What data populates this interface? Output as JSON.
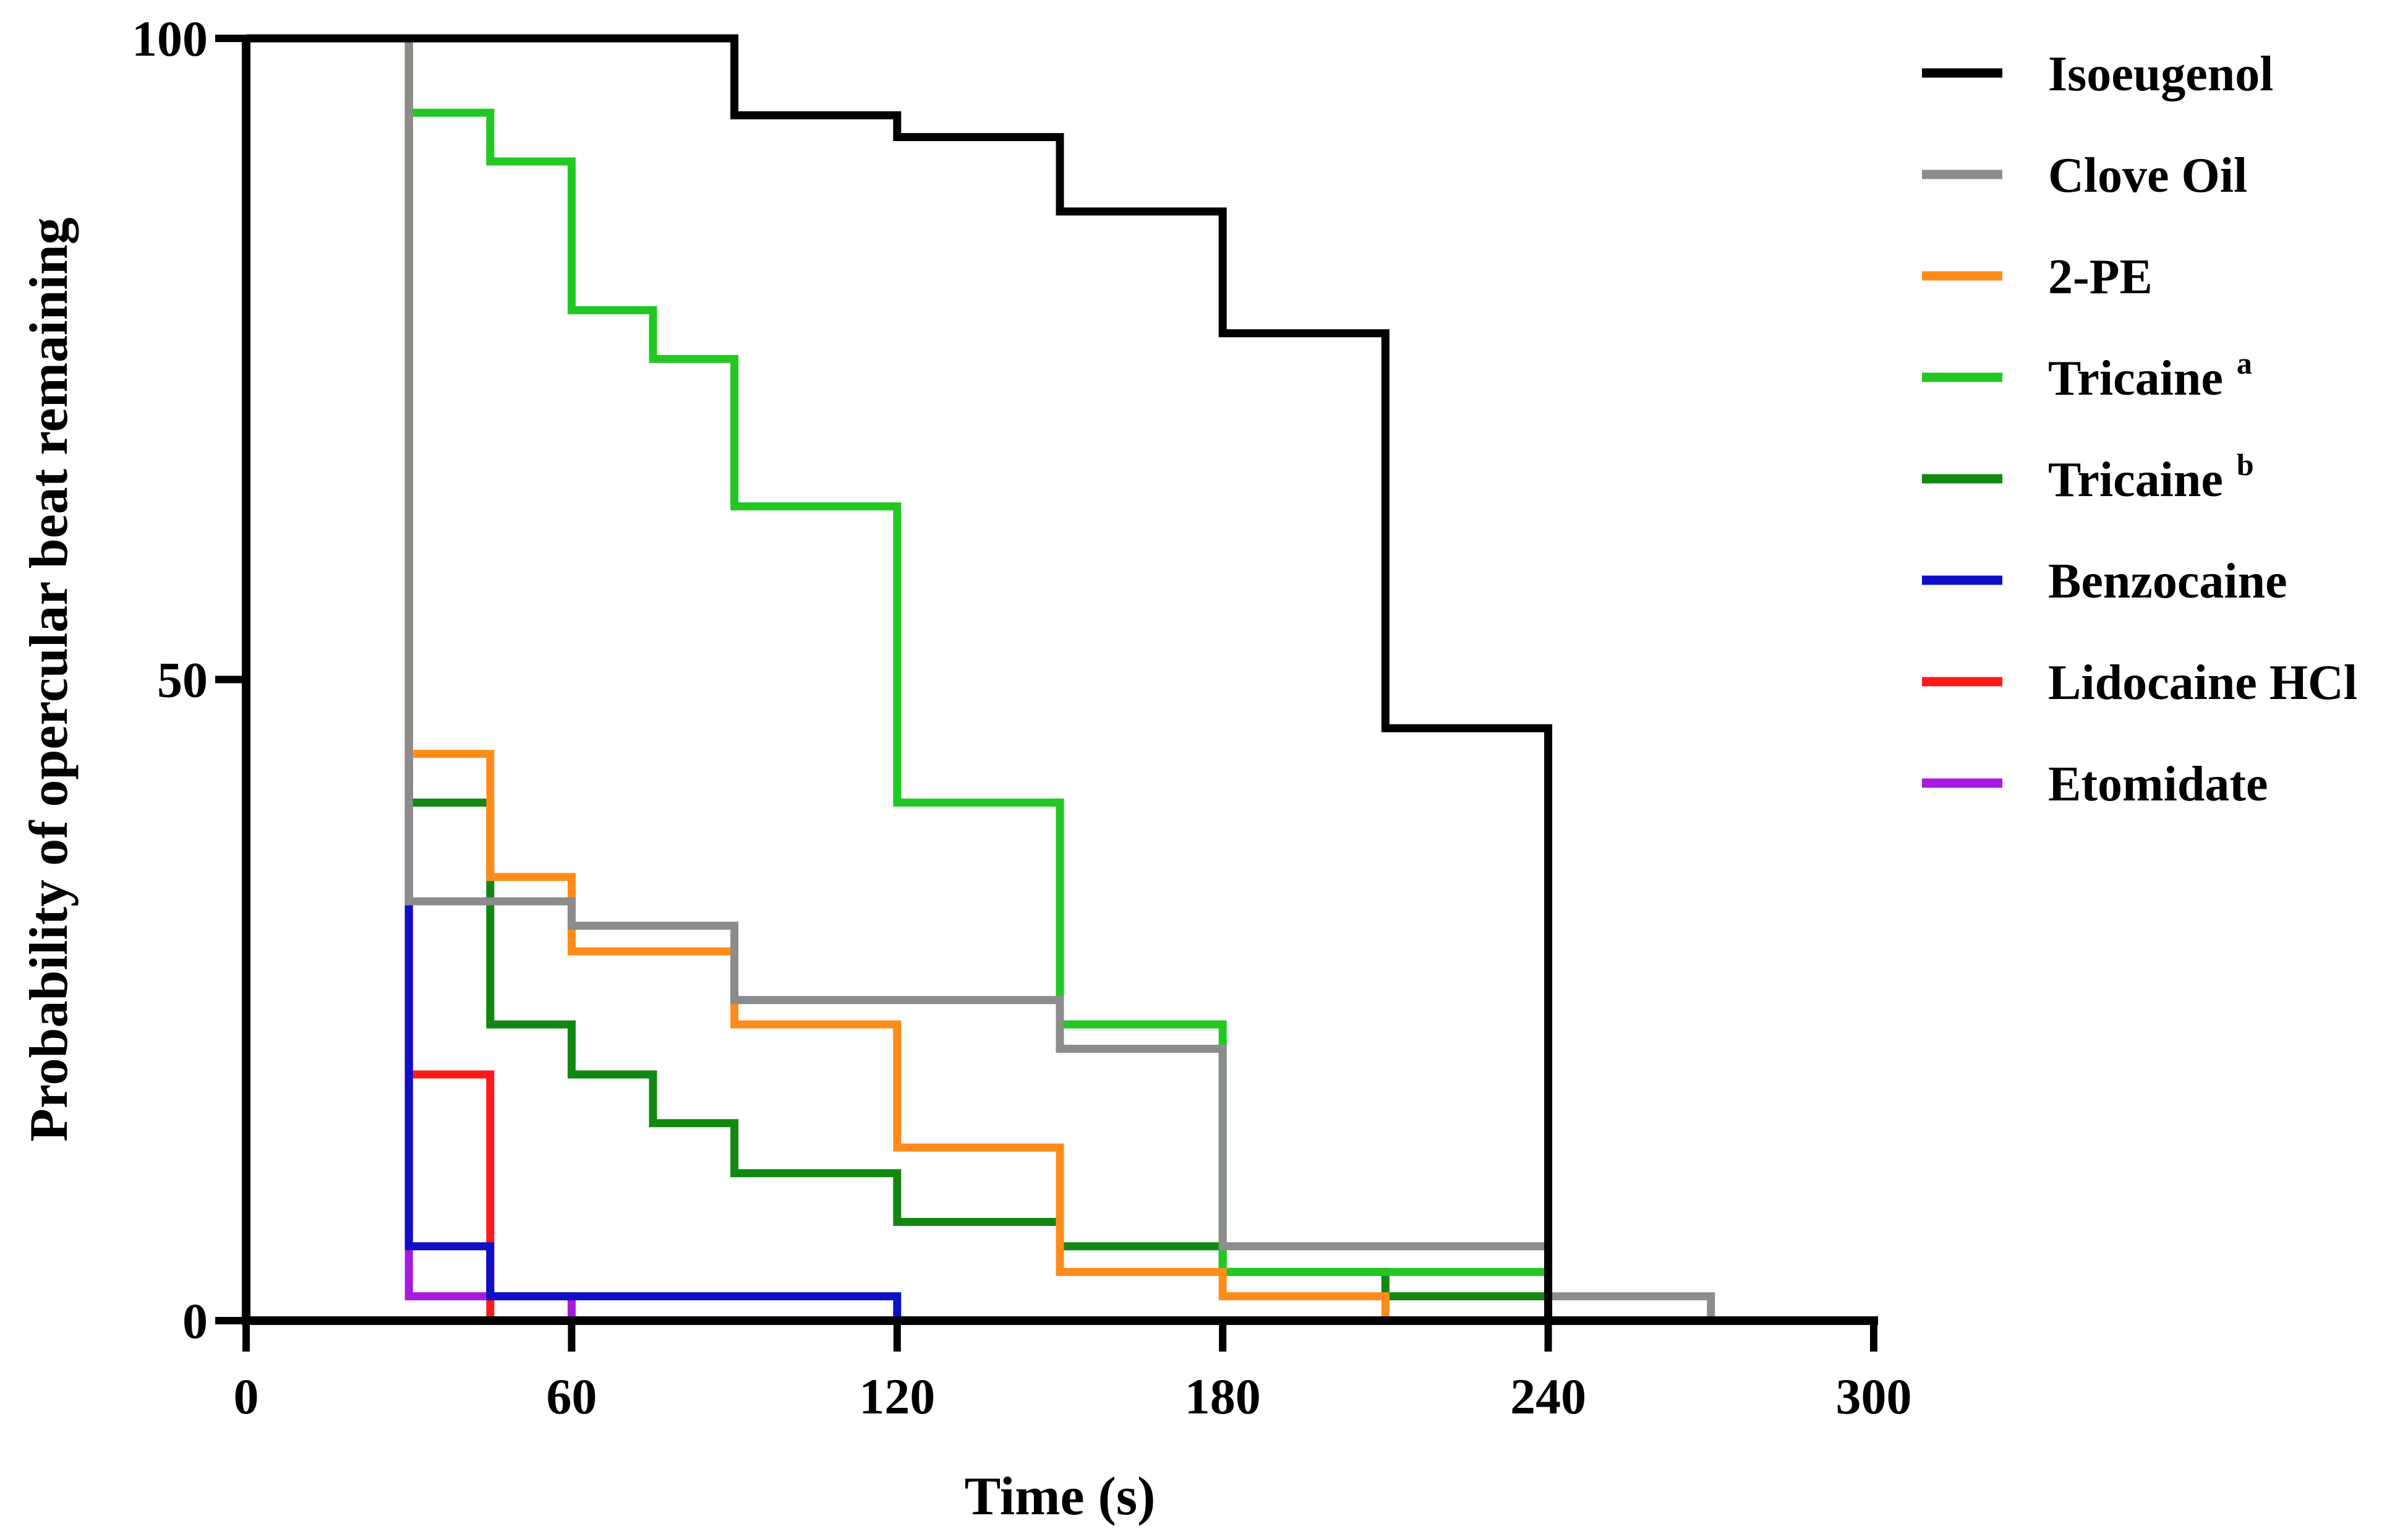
{
  "chart_data": {
    "type": "line",
    "step": true,
    "title": "",
    "xlabel": "Time (s)",
    "ylabel": "Probability of opercular beat remaining",
    "xlim": [
      0,
      300
    ],
    "ylim": [
      0,
      100
    ],
    "x_ticks": [
      "0",
      "60",
      "120",
      "180",
      "240",
      "300"
    ],
    "y_ticks": [
      "0",
      "50",
      "100"
    ],
    "legend_position": "top-right",
    "series": [
      {
        "name": "Isoeugenol",
        "sup": "",
        "color": "#000000",
        "x": [
          0,
          90,
          120,
          150,
          180,
          210,
          240
        ],
        "y": [
          100,
          94,
          92.3,
          86.5,
          77,
          46.2,
          0
        ]
      },
      {
        "name": "Clove Oil",
        "sup": "",
        "color": "#8c8c8c",
        "x": [
          30,
          60,
          90,
          150,
          180,
          240,
          270
        ],
        "y": [
          32.7,
          30.8,
          25,
          21.2,
          5.8,
          1.9,
          0
        ]
      },
      {
        "name": "2-PE",
        "sup": "",
        "color": "#ff8c1a",
        "x": [
          30,
          45,
          60,
          90,
          120,
          150,
          180,
          210
        ],
        "y": [
          44.2,
          34.6,
          28.8,
          23.1,
          13.5,
          3.8,
          1.9,
          0
        ]
      },
      {
        "name": "Tricaine",
        "sup": "a",
        "color": "#22c822",
        "x": [
          30,
          45,
          60,
          75,
          90,
          120,
          150,
          180,
          240
        ],
        "y": [
          94.2,
          90.4,
          78.8,
          75,
          63.5,
          40.4,
          23.1,
          3.8,
          3.8
        ]
      },
      {
        "name": "Tricaine",
        "sup": "b",
        "color": "#118811",
        "x": [
          30,
          45,
          60,
          75,
          90,
          120,
          150,
          180,
          210,
          240
        ],
        "y": [
          40.4,
          23.1,
          19.2,
          15.4,
          11.5,
          7.7,
          5.8,
          3.8,
          1.9,
          1.9
        ]
      },
      {
        "name": "Benzocaine",
        "sup": "",
        "color": "#0f0fc8",
        "x": [
          30,
          45,
          120
        ],
        "y": [
          5.8,
          1.9,
          0
        ]
      },
      {
        "name": "Lidocaine HCl",
        "sup": "",
        "color": "#ff1a1a",
        "x": [
          30,
          45
        ],
        "y": [
          19.2,
          0
        ]
      },
      {
        "name": "Etomidate",
        "sup": "",
        "color": "#a81ae0",
        "x": [
          30,
          60
        ],
        "y": [
          1.9,
          0
        ]
      }
    ],
    "drop_from": 100,
    "drop_x": 30
  }
}
